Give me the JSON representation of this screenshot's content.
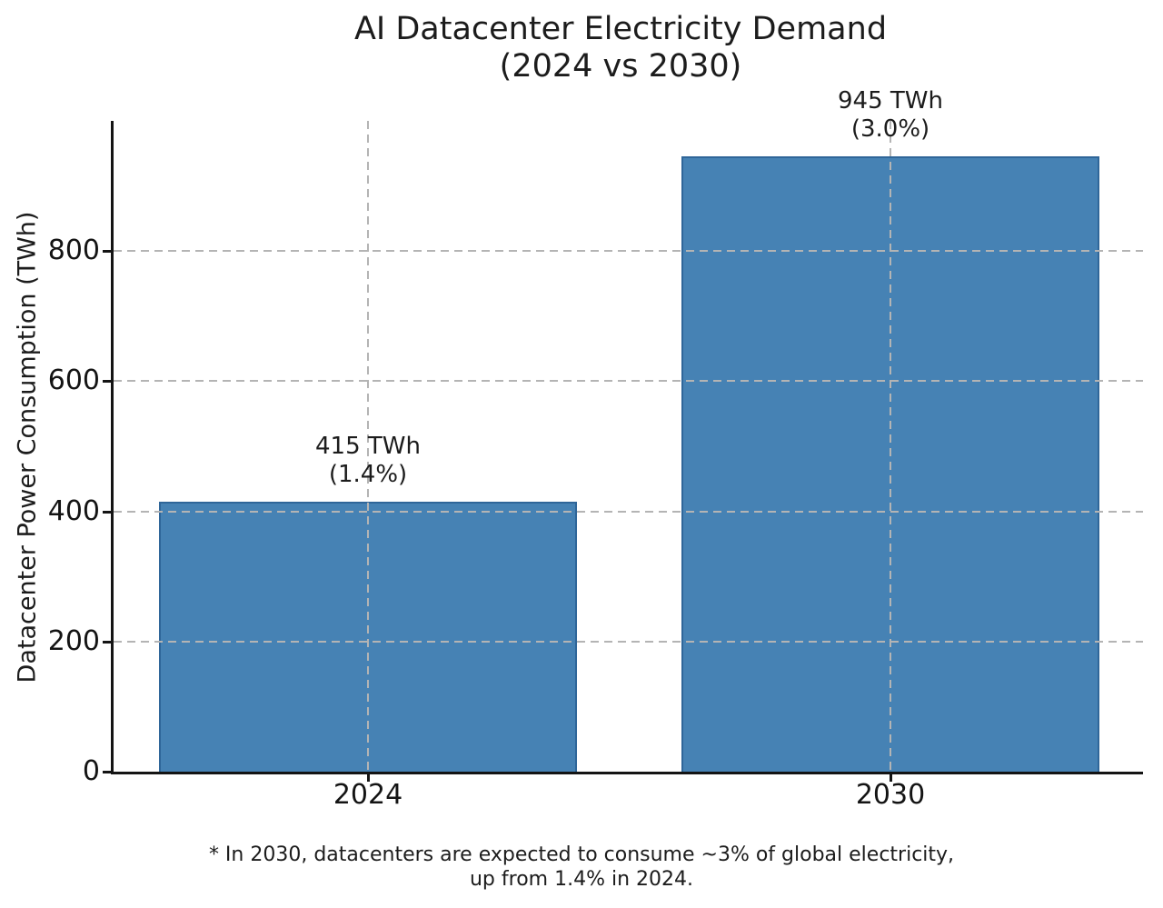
{
  "figure": {
    "title_line1": "AI Datacenter Electricity Demand",
    "title_line2": "(2024 vs 2030)",
    "footnote_line1": "* In 2030, datacenters are expected to consume ~3% of global electricity,",
    "footnote_line2": "up from 1.4% in 2024."
  },
  "chart_data": {
    "type": "bar",
    "title": "AI Datacenter Electricity Demand (2024 vs 2030)",
    "categories": [
      "2024",
      "2030"
    ],
    "values": [
      415,
      945
    ],
    "shares_pct": [
      1.4,
      3.0
    ],
    "annotations": [
      [
        "415 TWh",
        "(1.4%)"
      ],
      [
        "945 TWh",
        "(3.0%)"
      ]
    ],
    "xlabel": "",
    "ylabel": "Datacenter Power Consumption (TWh)",
    "yticks": [
      0,
      200,
      400,
      600,
      800
    ],
    "ylim": [
      0,
      1000
    ],
    "grid": true,
    "grid_style": "dashed",
    "grid_color": "#b4b4b4",
    "legend_position": "none",
    "bar_color": "#4682B4",
    "bar_edge_color": "#2f6699",
    "footnote": "* In 2030, datacenters are expected to consume ~3% of global electricity, up from 1.4% in 2024."
  }
}
